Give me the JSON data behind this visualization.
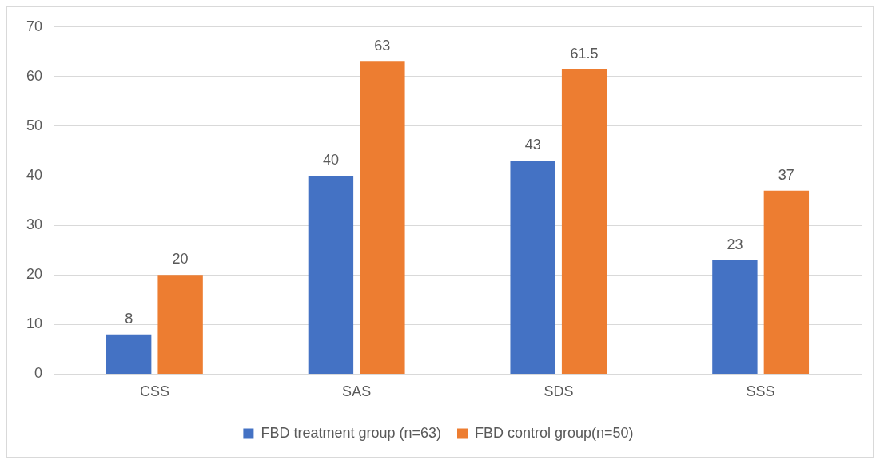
{
  "chart_data": {
    "type": "bar",
    "categories": [
      "CSS",
      "SAS",
      "SDS",
      "SSS"
    ],
    "series": [
      {
        "name": "FBD treatment group (n=63)",
        "color": "#4472c4",
        "values": [
          8,
          40,
          43,
          23
        ]
      },
      {
        "name": "FBD control group(n=50)",
        "color": "#ed7d31",
        "values": [
          20,
          63,
          61.5,
          37
        ]
      }
    ],
    "ylim": [
      0,
      70
    ],
    "yticks": [
      0,
      10,
      20,
      30,
      40,
      50,
      60,
      70
    ],
    "grid": "y",
    "legend": "bottom",
    "data_labels": true
  }
}
